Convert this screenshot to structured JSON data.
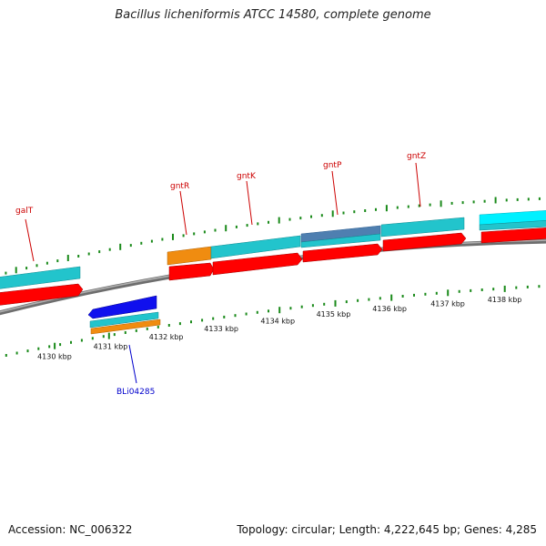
{
  "title": "Bacillus licheniformis ATCC 14580, complete genome",
  "accession": "Accession: NC_006322",
  "summary": "Topology: circular; Length: 4,222,645 bp; Genes: 4,285",
  "colors": {
    "backbone": "#8a8a8a",
    "cds_forward": "#ff0000",
    "cds_reverse": "#1010ee",
    "gene": "#22c4cc",
    "gene_alt": "#f08c10",
    "gene_steel": "#4f7fb0",
    "gene_bright": "#00f0ff",
    "tick": "#1a8a1a",
    "label_red": "#cc0000",
    "label_blue": "#0000cc"
  },
  "scale": {
    "unit": "kbp",
    "labels": [
      "4130 kbp",
      "4131 kbp",
      "4132 kbp",
      "4133 kbp",
      "4134 kbp",
      "4135 kbp",
      "4136 kbp",
      "4137 kbp",
      "4138 kbp"
    ]
  },
  "genes": [
    {
      "name": "galT",
      "strand": "+"
    },
    {
      "name": "gntR",
      "strand": "+"
    },
    {
      "name": "gntK",
      "strand": "+"
    },
    {
      "name": "gntP",
      "strand": "+"
    },
    {
      "name": "gntZ",
      "strand": "+"
    },
    {
      "name": "BLi04285",
      "strand": "-"
    }
  ]
}
